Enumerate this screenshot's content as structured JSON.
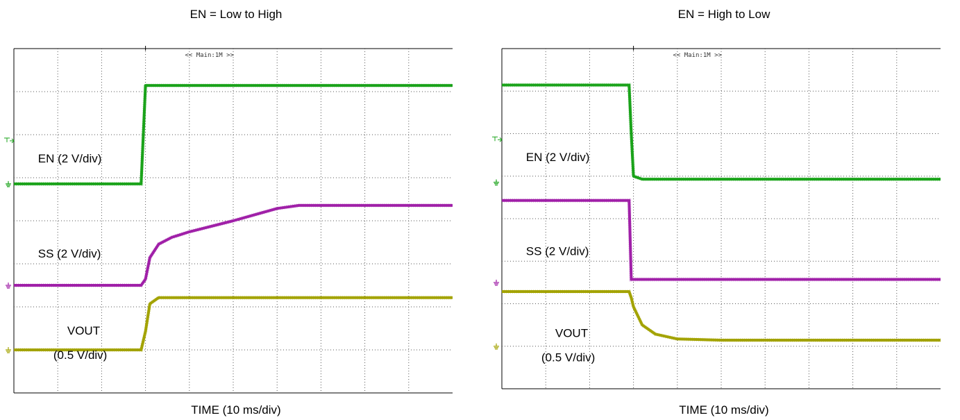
{
  "chart_data": [
    {
      "type": "line",
      "title": "EN = Low to High",
      "xlabel": "TIME (10 ms/div)",
      "zoom_label": "<< Main:1M >>",
      "divisions": {
        "x": 10,
        "y": 8
      },
      "x": [
        0,
        1,
        2,
        2.9,
        3.0,
        3.1,
        3.3,
        3.6,
        4,
        5,
        6,
        6.5,
        7,
        8,
        9,
        10
      ],
      "series": [
        {
          "name": "EN (2 V/div)",
          "color": "#1aa31a",
          "ground_level": 6.4,
          "values": [
            6.4,
            6.4,
            6.4,
            6.4,
            8.0,
            8.0,
            8.0,
            8.0,
            8.0,
            8.0,
            8.0,
            8.0,
            8.0,
            8.0,
            8.0,
            8.0
          ]
        },
        {
          "name": "SS (2 V/div)",
          "color": "#a020a8",
          "ground_level": 4.75,
          "values": [
            4.75,
            4.75,
            4.75,
            4.75,
            4.85,
            5.2,
            5.42,
            5.53,
            5.62,
            5.8,
            6.0,
            6.05,
            6.05,
            6.05,
            6.05,
            6.05
          ]
        },
        {
          "name": "VOUT (0.5 V/div)",
          "label_lines": [
            "VOUT",
            "(0.5 V/div)"
          ],
          "color": "#a3a300",
          "ground_level": 3.7,
          "values": [
            3.7,
            3.7,
            3.7,
            3.7,
            4.0,
            4.45,
            4.55,
            4.55,
            4.55,
            4.55,
            4.55,
            4.55,
            4.55,
            4.55,
            4.55,
            4.55
          ]
        }
      ]
    },
    {
      "type": "line",
      "title": "EN = High to Low",
      "xlabel": "TIME (10 ms/div)",
      "zoom_label": "<< Main:1M >>",
      "divisions": {
        "x": 10,
        "y": 8
      },
      "x": [
        0,
        1,
        2,
        2.9,
        2.95,
        3.0,
        3.2,
        3.5,
        4,
        5,
        6,
        7,
        8,
        9,
        10
      ],
      "series": [
        {
          "name": "EN (2 V/div)",
          "color": "#1aa31a",
          "ground_level": 6.4,
          "values": [
            8.0,
            8.0,
            8.0,
            8.0,
            7.2,
            6.5,
            6.45,
            6.45,
            6.45,
            6.45,
            6.45,
            6.45,
            6.45,
            6.45,
            6.45
          ]
        },
        {
          "name": "SS (2 V/div)",
          "color": "#a020a8",
          "ground_level": 4.75,
          "values": [
            6.1,
            6.1,
            6.1,
            6.1,
            4.8,
            4.8,
            4.8,
            4.8,
            4.8,
            4.8,
            4.8,
            4.8,
            4.8,
            4.8,
            4.8
          ]
        },
        {
          "name": "VOUT (0.5 V/div)",
          "label_lines": [
            "VOUT",
            "(0.5 V/div)"
          ],
          "color": "#a3a300",
          "ground_level": 3.7,
          "values": [
            4.6,
            4.6,
            4.6,
            4.6,
            4.5,
            4.35,
            4.05,
            3.9,
            3.82,
            3.8,
            3.8,
            3.8,
            3.8,
            3.8,
            3.8
          ]
        }
      ]
    }
  ]
}
